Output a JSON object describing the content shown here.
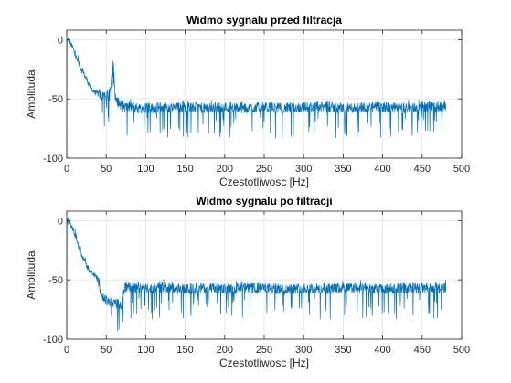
{
  "chart_data": [
    {
      "type": "line",
      "title": "Widmo sygnalu przed filtracja",
      "xlabel": "Czestotliwosc [Hz]",
      "ylabel": "Amplituda",
      "xlim": [
        0,
        500
      ],
      "ylim": [
        -100,
        8
      ],
      "xticks": [
        0,
        50,
        100,
        150,
        200,
        250,
        300,
        350,
        400,
        450,
        500
      ],
      "yticks": [
        0,
        -50,
        -100
      ],
      "grid": true,
      "color": "#0072BD",
      "series": [
        {
          "x": [
            0,
            1,
            2,
            3,
            4,
            5,
            6,
            8,
            10,
            12,
            15,
            18,
            20,
            25,
            30,
            35,
            40,
            45,
            48,
            50,
            53,
            55,
            57,
            58,
            59,
            60,
            61,
            62,
            63,
            65,
            68,
            70,
            75,
            80,
            85,
            90,
            95,
            100,
            110,
            120,
            130,
            150,
            175,
            200,
            225,
            250,
            275,
            300,
            325,
            350,
            375,
            400,
            425,
            450,
            480
          ],
          "values": [
            -3,
            0,
            -1,
            0,
            -2,
            -4,
            -5,
            -7,
            -12,
            -15,
            -20,
            -24,
            -27,
            -33,
            -40,
            -44,
            -46,
            -48,
            -47,
            -48,
            -45,
            -42,
            -30,
            -20,
            -15,
            -30,
            -45,
            -49,
            -53,
            -52,
            -55,
            -56,
            -57,
            -57,
            -57,
            -58,
            -58,
            -57,
            -58,
            -57,
            -58,
            -57,
            -58,
            -57,
            -58,
            -57,
            -58,
            -57,
            -57,
            -58,
            -57,
            -57,
            -58,
            -57,
            -57
          ]
        }
      ]
    },
    {
      "type": "line",
      "title": "Widmo sygnalu po filtracji",
      "xlabel": "Czestotliwosc [Hz]",
      "ylabel": "Amplituda",
      "xlim": [
        0,
        500
      ],
      "ylim": [
        -100,
        8
      ],
      "xticks": [
        0,
        50,
        100,
        150,
        200,
        250,
        300,
        350,
        400,
        450,
        500
      ],
      "yticks": [
        0,
        -50,
        -100
      ],
      "grid": true,
      "color": "#0072BD",
      "series": [
        {
          "x": [
            0,
            1,
            2,
            3,
            4,
            5,
            6,
            8,
            10,
            12,
            15,
            18,
            20,
            25,
            30,
            35,
            40,
            43,
            45,
            48,
            50,
            55,
            60,
            65,
            68,
            70,
            72,
            75,
            80,
            90,
            100,
            110,
            120,
            130,
            150,
            175,
            200,
            225,
            250,
            275,
            300,
            325,
            350,
            375,
            400,
            425,
            450,
            480
          ],
          "values": [
            -3,
            0,
            -1,
            0,
            -2,
            -4,
            -5,
            -7,
            -12,
            -15,
            -22,
            -28,
            -30,
            -38,
            -43,
            -46,
            -50,
            -60,
            -63,
            -66,
            -67,
            -68,
            -69,
            -70,
            -70,
            -71,
            -58,
            -56,
            -57,
            -57,
            -58,
            -57,
            -56,
            -57,
            -58,
            -57,
            -58,
            -57,
            -57,
            -58,
            -57,
            -58,
            -57,
            -57,
            -58,
            -57,
            -57,
            -57
          ]
        }
      ]
    }
  ]
}
